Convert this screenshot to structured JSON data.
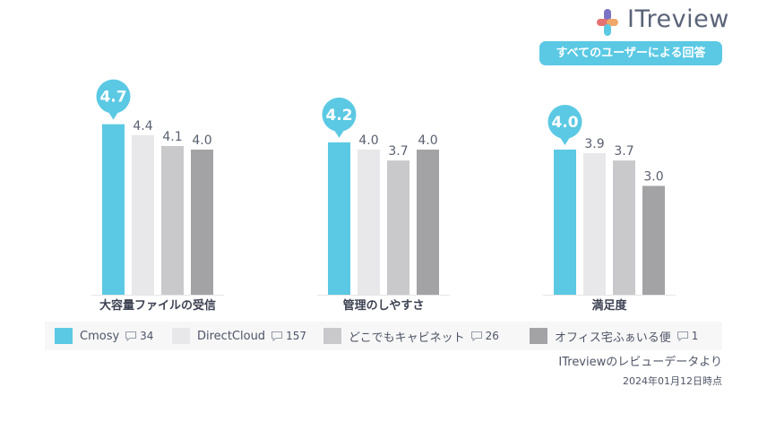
{
  "brand": {
    "logo_text": "ITreview"
  },
  "badge": {
    "label": "すべてのユーザーによる回答"
  },
  "chart_data": {
    "type": "bar",
    "categories": [
      "大容量ファイルの受信",
      "管理のしやすさ",
      "満足度"
    ],
    "series": [
      {
        "name": "Cmosy",
        "values": [
          4.7,
          4.2,
          4.0
        ],
        "color": "#5bc9e4"
      },
      {
        "name": "DirectCloud",
        "values": [
          4.4,
          4.0,
          3.9
        ],
        "color": "#e8e8ea"
      },
      {
        "name": "どこでもキャビネット",
        "values": [
          4.1,
          3.7,
          3.7
        ],
        "color": "#c9c9cb"
      },
      {
        "name": "オフィス宅ふぁいる便",
        "values": [
          4.0,
          4.0,
          3.0
        ],
        "color": "#a3a3a5"
      }
    ],
    "highlighted_series": "Cmosy",
    "ylim": [
      0,
      5
    ],
    "grid": false,
    "legend_position": "bottom"
  },
  "legend": {
    "items": [
      {
        "name": "Cmosy",
        "count": "34"
      },
      {
        "name": "DirectCloud",
        "count": "157"
      },
      {
        "name": "どこでもキャビネット",
        "count": "26"
      },
      {
        "name": "オフィス宅ふぁいる便",
        "count": "1"
      }
    ]
  },
  "footer": {
    "source": "ITreviewのレビューデータより",
    "date": "2024年01月12日時点"
  }
}
